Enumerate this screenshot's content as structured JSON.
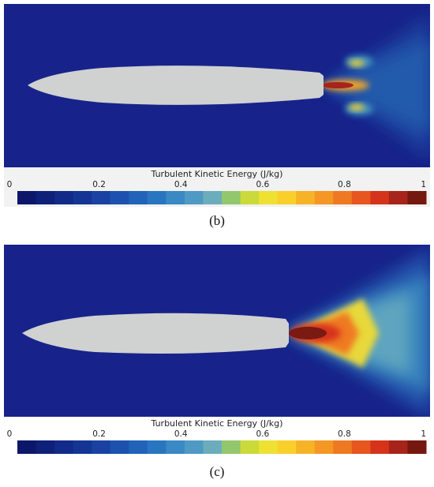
{
  "panels": [
    {
      "label": "(b)",
      "colorbar": {
        "title": "Turbulent Kinetic Energy (J/kg)",
        "range": [
          0,
          1
        ],
        "ticks": [
          0,
          0.2,
          0.4,
          0.6,
          0.8,
          1
        ],
        "colors": [
          "#0c176a",
          "#0f2079",
          "#122a88",
          "#153595",
          "#1942a2",
          "#1c52ae",
          "#2063b8",
          "#2976c0",
          "#3a88c4",
          "#4f9ac4",
          "#6cadbd",
          "#93c76e",
          "#c9da3a",
          "#eee132",
          "#f9cf2b",
          "#f7b327",
          "#f49724",
          "#ef7922",
          "#e8561f",
          "#d6331b",
          "#a7241a",
          "#741810"
        ]
      }
    },
    {
      "label": "(c)",
      "colorbar": {
        "title": "Turbulent Kinetic Energy (J/kg)",
        "range": [
          0,
          1
        ],
        "ticks": [
          0,
          0.2,
          0.4,
          0.6,
          0.8,
          1
        ],
        "colors": [
          "#0c176a",
          "#0f2079",
          "#122a88",
          "#153595",
          "#1942a2",
          "#1c52ae",
          "#2063b8",
          "#2976c0",
          "#3a88c4",
          "#4f9ac4",
          "#6cadbd",
          "#93c76e",
          "#c9da3a",
          "#eee132",
          "#f9cf2b",
          "#f7b327",
          "#f49724",
          "#ef7922",
          "#e8561f",
          "#d6331b",
          "#a7241a",
          "#741810"
        ]
      }
    }
  ]
}
